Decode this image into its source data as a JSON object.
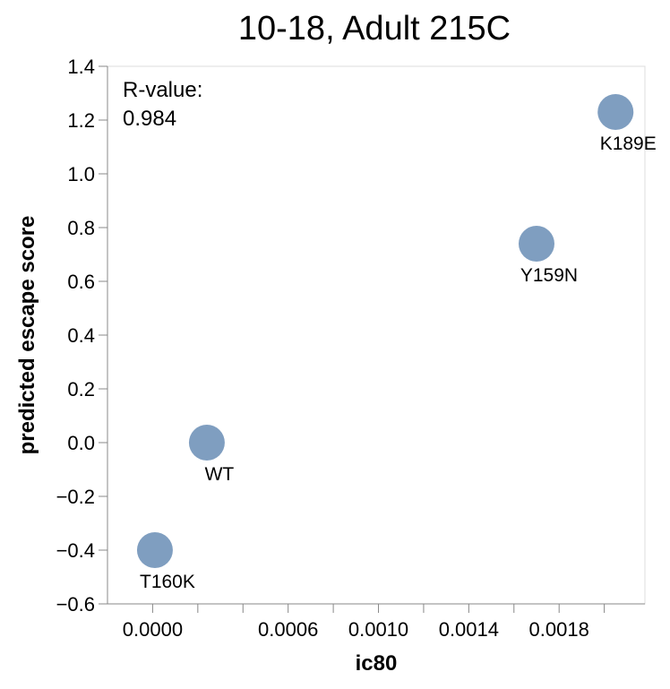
{
  "chart_data": {
    "type": "scatter",
    "title": "10-18, Adult 215C",
    "xlabel": "ic80",
    "ylabel": "predicted escape score",
    "xlim": [
      -0.0002,
      0.00218
    ],
    "ylim": [
      -0.6,
      1.4
    ],
    "x_ticks": [
      0.0,
      0.0002,
      0.0004,
      0.0006,
      0.0008,
      0.001,
      0.0012,
      0.0014,
      0.0016,
      0.0018,
      0.002
    ],
    "x_tick_labels": [
      "0.0000",
      "",
      "",
      "0.0006",
      "",
      "0.0010",
      "",
      "0.0014",
      "",
      "0.0018",
      ""
    ],
    "y_ticks": [
      -0.6,
      -0.4,
      -0.2,
      0.0,
      0.2,
      0.4,
      0.6,
      0.8,
      1.0,
      1.2,
      1.4
    ],
    "y_tick_labels": [
      "−0.6",
      "−0.4",
      "−0.2",
      "0.0",
      "0.2",
      "0.4",
      "0.6",
      "0.8",
      "1.0",
      "1.2",
      "1.4"
    ],
    "grid": false,
    "point_color": "#7f9ec0",
    "points": [
      {
        "label": "K189E",
        "x": 0.00205,
        "y": 1.23
      },
      {
        "label": "Y159N",
        "x": 0.0017,
        "y": 0.74
      },
      {
        "label": "WT",
        "x": 0.00024,
        "y": 0.0
      },
      {
        "label": "T160K",
        "x": 1e-05,
        "y": -0.4
      }
    ],
    "annotation": {
      "label": "R-value:",
      "value": "0.984"
    }
  }
}
